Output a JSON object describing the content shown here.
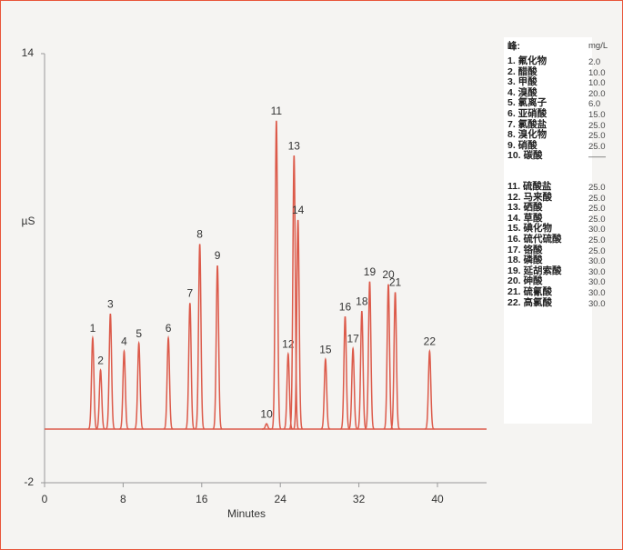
{
  "chart_data": {
    "type": "peaks",
    "x_label": "Minutes",
    "y_label": "µS",
    "xlim": [
      0,
      45
    ],
    "xticks": [
      0,
      8,
      16,
      24,
      32,
      40
    ],
    "ylim": [
      -2,
      14
    ],
    "yticks": [
      -2,
      14
    ],
    "color": "#dc5a4a",
    "peak_labels": [
      "1",
      "2",
      "3",
      "4",
      "5",
      "6",
      "7",
      "8",
      "9",
      "10",
      "11",
      "12",
      "13",
      "14",
      "15",
      "16",
      "17",
      "18",
      "19",
      "20",
      "21",
      "22"
    ],
    "x": [
      4.9,
      5.7,
      6.7,
      8.1,
      9.6,
      12.6,
      14.8,
      15.8,
      17.6,
      22.6,
      23.6,
      24.8,
      25.4,
      25.8,
      28.6,
      30.6,
      31.4,
      32.3,
      33.1,
      35.0,
      35.7,
      39.2
    ],
    "values": [
      3.4,
      2.2,
      4.3,
      2.9,
      3.2,
      3.4,
      4.7,
      6.9,
      6.1,
      0.2,
      11.5,
      2.8,
      10.2,
      7.8,
      2.6,
      4.2,
      3.0,
      4.4,
      5.5,
      5.4,
      5.1,
      2.9
    ],
    "legend": {
      "header": "峰:",
      "unit": "mg/L",
      "items": [
        {
          "name": "1. 氟化物",
          "conc": "2.0"
        },
        {
          "name": "2. 醋酸",
          "conc": "10.0"
        },
        {
          "name": "3. 甲酸",
          "conc": "10.0"
        },
        {
          "name": "4. 溴酸",
          "conc": "20.0"
        },
        {
          "name": "5. 氯离子",
          "conc": "6.0"
        },
        {
          "name": "6. 亚硝酸",
          "conc": "15.0"
        },
        {
          "name": "7. 氯酸盐",
          "conc": "25.0"
        },
        {
          "name": "8. 溴化物",
          "conc": "25.0"
        },
        {
          "name": "9. 硝酸",
          "conc": "25.0"
        },
        {
          "name": "10. 碳酸",
          "conc": "——"
        },
        {
          "name": "11. 硫酸盐",
          "conc": "25.0"
        },
        {
          "name": "12. 马来酸",
          "conc": "25.0"
        },
        {
          "name": "13. 硒酸",
          "conc": "25.0"
        },
        {
          "name": "14. 草酸",
          "conc": "25.0"
        },
        {
          "name": "15. 碘化物",
          "conc": "30.0"
        },
        {
          "name": "16. 硫代硫酸",
          "conc": "25.0"
        },
        {
          "name": "17. 铬酸",
          "conc": "25.0"
        },
        {
          "name": "18. 磷酸",
          "conc": "30.0"
        },
        {
          "name": "19. 延胡索酸",
          "conc": "30.0"
        },
        {
          "name": "20. 砷酸",
          "conc": "30.0"
        },
        {
          "name": "21. 硫氰酸",
          "conc": "30.0"
        },
        {
          "name": "22. 高氯酸",
          "conc": "30.0"
        }
      ]
    }
  }
}
